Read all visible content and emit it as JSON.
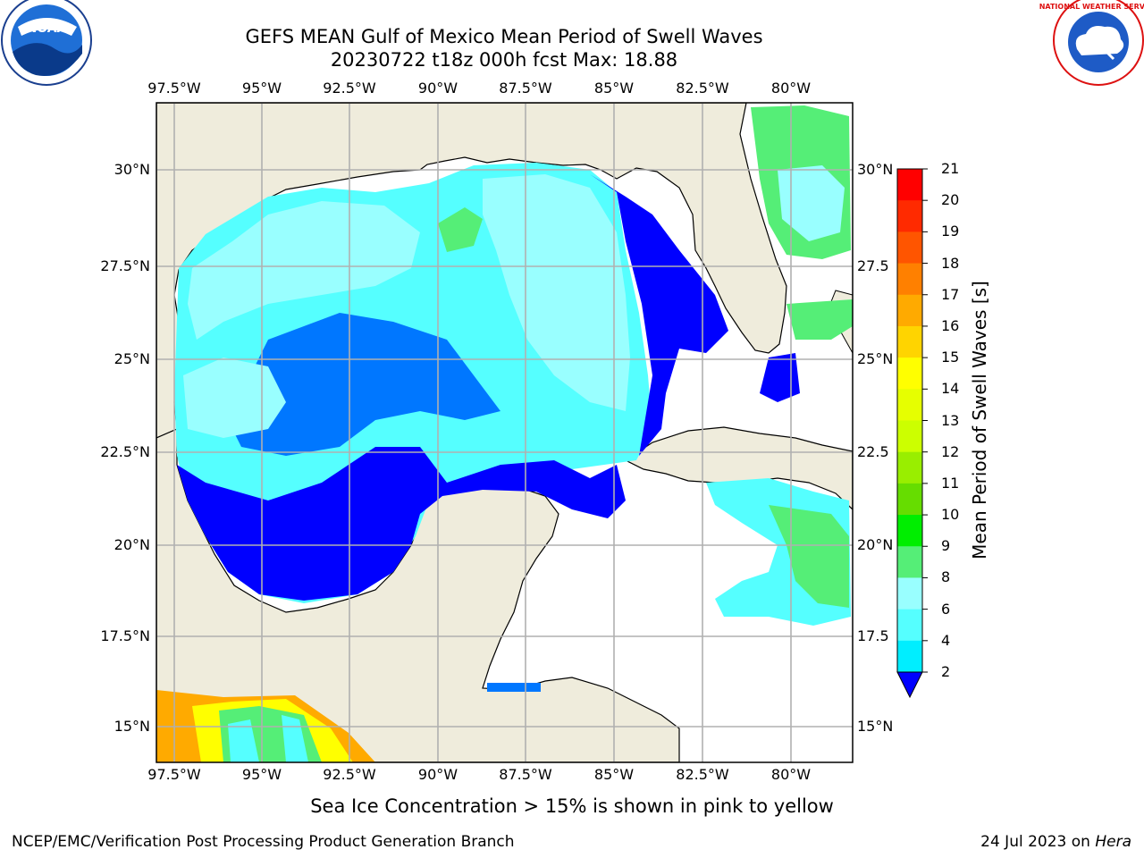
{
  "header": {
    "title_line1": "GEFS MEAN Gulf of Mexico Mean Period of Swell Waves",
    "title_line2": "20230722 t18z 000h fcst   Max: 18.88"
  },
  "logos": {
    "left": "noaa-logo",
    "right": "national-weather-service-logo",
    "left_text": "NOAA",
    "right_text": "NATIONAL WEATHER SERVICE"
  },
  "map": {
    "lon_labels": [
      "97.5°W",
      "95°W",
      "92.5°W",
      "90°W",
      "87.5°W",
      "85°W",
      "82.5°W",
      "80°W"
    ],
    "lat_labels_left": [
      "30°N",
      "27.5°N",
      "25°N",
      "22.5°N",
      "20°N",
      "17.5°N",
      "15°N"
    ],
    "lat_labels_right": [
      "30°N",
      "27.5",
      "25°N",
      "22.5",
      "20°N",
      "17.5",
      "15°N"
    ],
    "colors": {
      "land": "#efecdc",
      "ocean_missing": "#ffffff",
      "grid": "#b0b0b0"
    }
  },
  "colorbar": {
    "label": "Mean Period of Swell Waves [s]",
    "ticks": [
      "21",
      "20",
      "19",
      "18",
      "17",
      "16",
      "15",
      "14",
      "13",
      "12",
      "11",
      "10",
      "9",
      "8",
      "6",
      "4",
      "2"
    ],
    "colors": [
      "#ff0000",
      "#ff2a00",
      "#ff5500",
      "#ff8000",
      "#ffaa00",
      "#ffd400",
      "#ffff00",
      "#e6ff00",
      "#ccff00",
      "#99ee00",
      "#66dd00",
      "#00ee00",
      "#55ee77",
      "#99ffff",
      "#55ffff",
      "#00eeff",
      "#00ccff",
      "#0077ff",
      "#0000ff"
    ],
    "under_color": "#0000ff"
  },
  "note": "Sea Ice Concentration > 15% is shown in pink to yellow",
  "footer": {
    "left": "NCEP/EMC/Verification Post Processing Product Generation Branch",
    "right_prefix": "24 Jul 2023 on ",
    "right_host": "Hera"
  }
}
